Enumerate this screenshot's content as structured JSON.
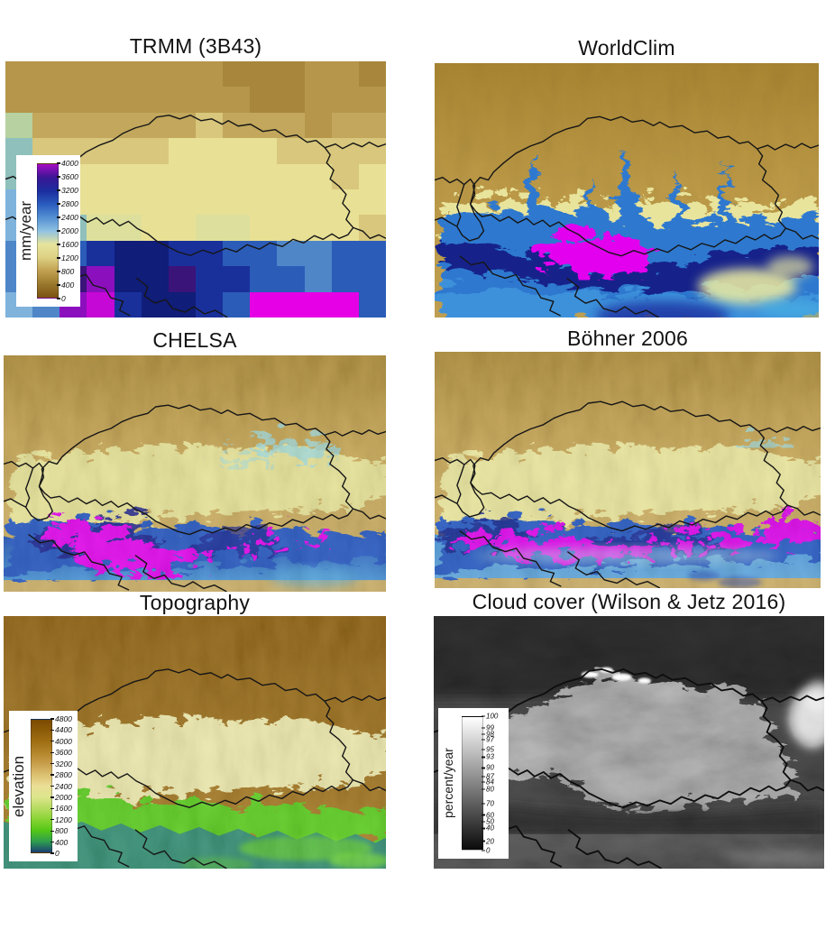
{
  "figure": {
    "background": "#ffffff",
    "panels": [
      {
        "key": "trmm",
        "title": "TRMM (3B43)",
        "colorbar": {
          "label": "mm/year",
          "gradient": [
            "#a50cc4",
            "#3a1694",
            "#1b2d9e",
            "#2a5cbe",
            "#5490d2",
            "#8fc2e2",
            "#e6e49c",
            "#ddd083",
            "#c0a050",
            "#99782c",
            "#7a5210"
          ],
          "ticks": [
            "4000",
            "3600",
            "3200",
            "2800",
            "2400",
            "2000",
            "1600",
            "1200",
            "800",
            "400",
            "0"
          ]
        }
      },
      {
        "key": "worldclim",
        "title": "WorldClim"
      },
      {
        "key": "chelsa",
        "title": "CHELSA"
      },
      {
        "key": "bohner",
        "title": "Böhner 2006"
      },
      {
        "key": "topography",
        "title": "Topography",
        "colorbar": {
          "label": "elevation",
          "gradient": [
            "#7a4a02",
            "#8d5c08",
            "#a06f14",
            "#b4862c",
            "#c89f4c",
            "#dcc172",
            "#ebde96",
            "#dde58c",
            "#b5dc60",
            "#88d434",
            "#55c716",
            "#2f9e4e",
            "#1a3f72"
          ],
          "ticks": [
            "4800",
            "4400",
            "4000",
            "3600",
            "3200",
            "2800",
            "2400",
            "2000",
            "1600",
            "1200",
            "800",
            "400",
            "0"
          ]
        }
      },
      {
        "key": "cloud",
        "title": "Cloud cover (Wilson & Jetz 2016)",
        "colorbar": {
          "label": "percent/year",
          "gradient": [
            "#ffffff",
            "#0a0a0a"
          ],
          "ticks": [
            {
              "v": "100",
              "p": 0
            },
            {
              "v": "99",
              "p": 0.085
            },
            {
              "v": "98",
              "p": 0.135
            },
            {
              "v": "97",
              "p": 0.175
            },
            {
              "v": "95",
              "p": 0.25
            },
            {
              "v": "93",
              "p": 0.305
            },
            {
              "v": "90",
              "p": 0.385
            },
            {
              "v": "87",
              "p": 0.45
            },
            {
              "v": "84",
              "p": 0.49
            },
            {
              "v": "80",
              "p": 0.545
            },
            {
              "v": "70",
              "p": 0.65
            },
            {
              "v": "60",
              "p": 0.735
            },
            {
              "v": "50",
              "p": 0.785
            },
            {
              "v": "40",
              "p": 0.835
            },
            {
              "v": "20",
              "p": 0.93
            },
            {
              "v": "0",
              "p": 1
            }
          ]
        }
      }
    ],
    "trmm_grid": {
      "palette": {
        "a": "#a8873c",
        "b": "#b5964a",
        "c": "#c2a75c",
        "d": "#d8c77c",
        "e": "#e8e095",
        "f": "#dde09c",
        "g": "#b7d1a0",
        "h": "#8fc0bb",
        "i": "#7fb3dc",
        "j": "#4f86c8",
        "k": "#2b5cb8",
        "l": "#19309b",
        "m": "#101d79",
        "n": "#3a1478",
        "o": "#8c0fbe",
        "p": "#c508d6",
        "q": "#e500e5"
      },
      "rows": [
        "bbbbbbbbaaabba",
        "bbbbbbbbbaabbb",
        "gccccccdcccbcc",
        "hdddddeeeedddd",
        "heeeeeeeeeeede",
        "igeeeeeeeeeeee",
        "iihffeeffeeeed",
        "jjklmmllkkjjkk",
        "jknommnllkkjkk",
        "ijoplmmlkqqqqk"
      ]
    }
  }
}
